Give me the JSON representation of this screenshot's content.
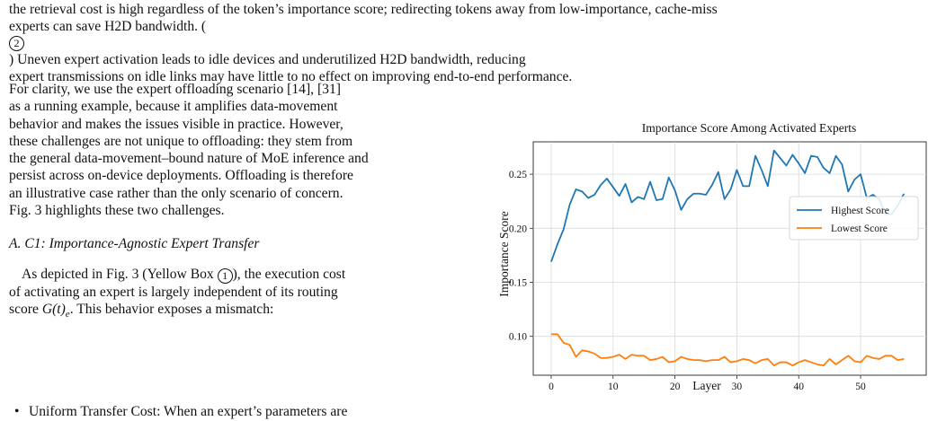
{
  "top_paragraph": {
    "line1": "the retrieval cost is high regardless of the token’s importance score; redirecting tokens away from low-importance, cache-miss",
    "line2a": "experts can save H2D bandwidth. (",
    "line2_marker": "2",
    "line2b": ") Uneven expert activation leads to idle devices and underutilized H2D bandwidth, reducing",
    "line3": "expert transmissions on idle links may have little to no effect on improving end-to-end performance."
  },
  "left_paragraph": {
    "lines": [
      "For clarity, we use the expert offloading scenario [14], [31]",
      "as a running example, because it amplifies data-movement",
      "behavior and makes the issues visible in practice. However,",
      "these challenges are not unique to offloading: they stem from",
      "the general data-movement–bound nature of MoE inference and",
      "persist across on-device deployments. Offloading is therefore",
      "an illustrative case rather than the only scenario of concern.",
      "Fig. 3 highlights these two challenges."
    ]
  },
  "section_heading": "A.  C1: Importance-Agnostic Expert Transfer",
  "section_paragraph": {
    "line1a": "As depicted in Fig. 3 (Yellow Box ",
    "line1_marker": "1",
    "line1b": "), the execution cost",
    "line2": "of activating an expert is largely independent of its routing",
    "line3a": "score ",
    "line3_math": "G(t)",
    "line3_sub": "e",
    "line3b": ". This behavior exposes a mismatch:"
  },
  "bullet_text": "Uniform Transfer Cost: When an expert’s parameters are",
  "chart_data": {
    "type": "line",
    "title": "Importance Score Among Activated Experts",
    "xlabel": "Layer",
    "ylabel": "Importance Score",
    "xlim": [
      -2.9,
      60.6
    ],
    "ylim": [
      0.064,
      0.28
    ],
    "xticks": [
      0,
      10,
      20,
      30,
      40,
      50
    ],
    "yticks": [
      0.1,
      0.15,
      0.2,
      0.25
    ],
    "ytick_labels": [
      "0.10",
      "0.15",
      "0.20",
      "0.25"
    ],
    "grid": true,
    "legend_position": "center-right",
    "series": [
      {
        "name": "Highest Score",
        "color": "#1f77b4",
        "x": [
          0,
          1,
          2,
          3,
          4,
          5,
          6,
          7,
          8,
          9,
          10,
          11,
          12,
          13,
          14,
          15,
          16,
          17,
          18,
          19,
          20,
          21,
          22,
          23,
          24,
          25,
          26,
          27,
          28,
          29,
          30,
          31,
          32,
          33,
          34,
          35,
          36,
          37,
          38,
          39,
          40,
          41,
          42,
          43,
          44,
          45,
          46,
          47,
          48,
          49,
          50,
          51,
          52,
          53,
          54,
          55,
          56,
          57
        ],
        "values": [
          0.169,
          0.185,
          0.199,
          0.222,
          0.236,
          0.234,
          0.228,
          0.231,
          0.24,
          0.246,
          0.238,
          0.23,
          0.241,
          0.224,
          0.229,
          0.227,
          0.243,
          0.226,
          0.227,
          0.247,
          0.235,
          0.217,
          0.227,
          0.232,
          0.232,
          0.231,
          0.24,
          0.252,
          0.227,
          0.236,
          0.254,
          0.239,
          0.239,
          0.267,
          0.254,
          0.239,
          0.272,
          0.265,
          0.258,
          0.268,
          0.26,
          0.251,
          0.267,
          0.266,
          0.256,
          0.251,
          0.267,
          0.259,
          0.234,
          0.245,
          0.25,
          0.228,
          0.231,
          0.227,
          0.213,
          0.213,
          0.221,
          0.232
        ]
      },
      {
        "name": "Lowest Score",
        "color": "#ff7f0e",
        "x": [
          0,
          1,
          2,
          3,
          4,
          5,
          6,
          7,
          8,
          9,
          10,
          11,
          12,
          13,
          14,
          15,
          16,
          17,
          18,
          19,
          20,
          21,
          22,
          23,
          24,
          25,
          26,
          27,
          28,
          29,
          30,
          31,
          32,
          33,
          34,
          35,
          36,
          37,
          38,
          39,
          40,
          41,
          42,
          43,
          44,
          45,
          46,
          47,
          48,
          49,
          50,
          51,
          52,
          53,
          54,
          55,
          56,
          57
        ],
        "values": [
          0.102,
          0.102,
          0.094,
          0.092,
          0.081,
          0.087,
          0.086,
          0.084,
          0.08,
          0.08,
          0.081,
          0.083,
          0.079,
          0.083,
          0.082,
          0.082,
          0.078,
          0.079,
          0.081,
          0.076,
          0.077,
          0.081,
          0.079,
          0.078,
          0.078,
          0.077,
          0.078,
          0.078,
          0.081,
          0.076,
          0.077,
          0.079,
          0.078,
          0.075,
          0.078,
          0.079,
          0.073,
          0.076,
          0.076,
          0.073,
          0.076,
          0.078,
          0.076,
          0.074,
          0.073,
          0.079,
          0.074,
          0.078,
          0.082,
          0.077,
          0.076,
          0.082,
          0.08,
          0.079,
          0.082,
          0.082,
          0.078,
          0.079
        ]
      }
    ]
  }
}
